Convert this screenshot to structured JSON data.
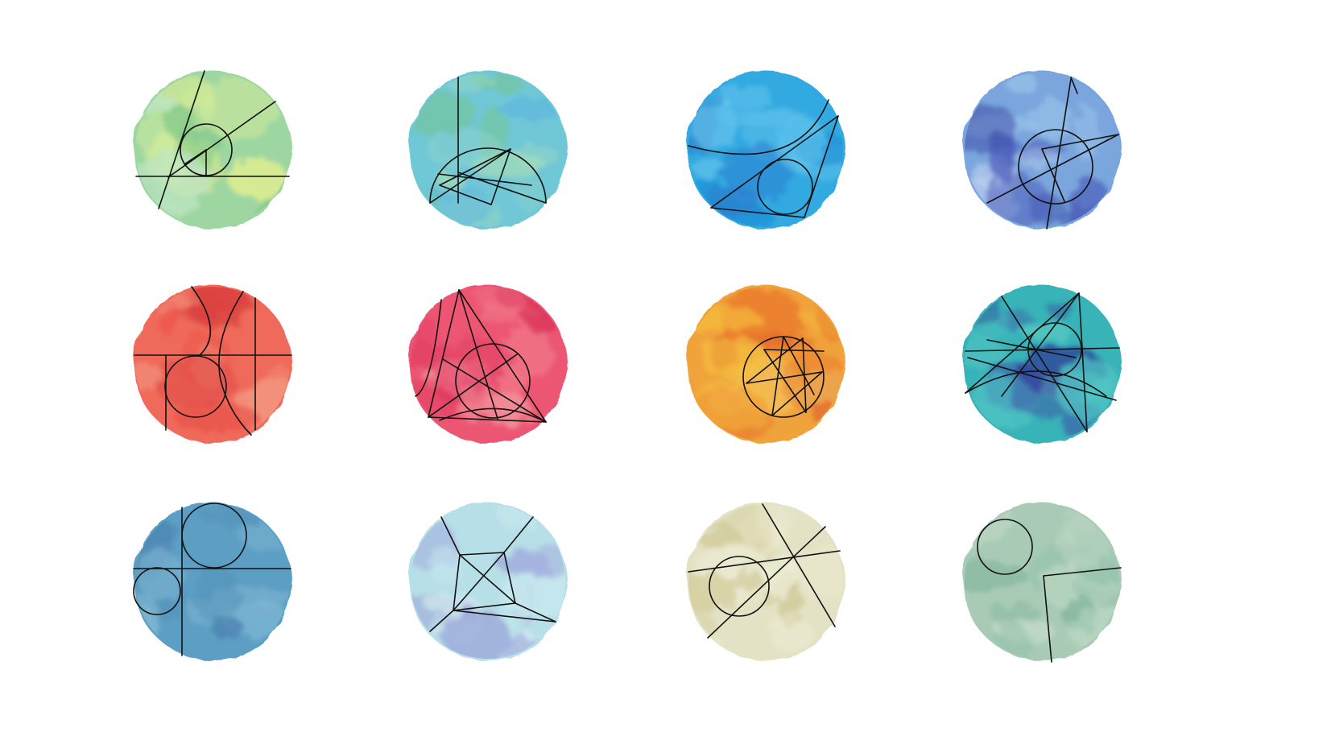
{
  "tiles": [
    {
      "name": "green-watercolor-tile",
      "colors": [
        "#9dd6a0",
        "#7cc785",
        "#d8ef9a",
        "#bfe6c6",
        "#e9f28d"
      ],
      "motif": "circle-tangent-lines"
    },
    {
      "name": "teal-watercolor-tile",
      "colors": [
        "#6fc7d6",
        "#74c48a",
        "#8fd3c9",
        "#5ab6e0",
        "#a7ddb8"
      ],
      "motif": "semicircle-triangles"
    },
    {
      "name": "sky-blue-watercolor-tile",
      "colors": [
        "#33a9e0",
        "#1e8fd6",
        "#5ec2ec",
        "#2b7fcf",
        "#72c9ef"
      ],
      "motif": "arc-and-incircle"
    },
    {
      "name": "indigo-watercolor-tile",
      "colors": [
        "#7aa6dd",
        "#4a5ab8",
        "#9ec7ec",
        "#3e4ea8",
        "#c3d3f2"
      ],
      "motif": "star-in-circle"
    },
    {
      "name": "red-watercolor-tile",
      "colors": [
        "#ef6a5a",
        "#e94b45",
        "#f2907a",
        "#d8403e",
        "#f4a088"
      ],
      "motif": "arcs-and-grid"
    },
    {
      "name": "pink-watercolor-tile",
      "colors": [
        "#ec5672",
        "#e13c63",
        "#f27e8c",
        "#d83158",
        "#f39a9f"
      ],
      "motif": "triangle-incircle"
    },
    {
      "name": "orange-watercolor-tile",
      "colors": [
        "#f0a23a",
        "#e86b2a",
        "#f5c23e",
        "#dd5a24",
        "#f3d26c"
      ],
      "motif": "pentagram-in-circle"
    },
    {
      "name": "blue-teal-watercolor-tile",
      "colors": [
        "#38b3b8",
        "#3e4fa6",
        "#4fc4c4",
        "#2e3d96",
        "#62cfc9"
      ],
      "motif": "crossing-lines-circle"
    },
    {
      "name": "steel-blue-watercolor-tile",
      "colors": [
        "#5d9fc4",
        "#4f8db5",
        "#7db4d2",
        "#4a7fae",
        "#89bfd8"
      ],
      "motif": "two-circles-cross"
    },
    {
      "name": "lavender-watercolor-tile",
      "colors": [
        "#b7dfe7",
        "#a5b2e0",
        "#c9e9ee",
        "#9aa4d8",
        "#d6eef0"
      ],
      "motif": "quadrilateral-rays"
    },
    {
      "name": "sand-watercolor-tile",
      "colors": [
        "#e3e2c4",
        "#d2cd98",
        "#ecebd3",
        "#c9c28a",
        "#f0efdc"
      ],
      "motif": "circle-secants"
    },
    {
      "name": "sage-watercolor-tile",
      "colors": [
        "#a9cbb5",
        "#8fbfa9",
        "#bdd8c4",
        "#80b39c",
        "#c9e0cf"
      ],
      "motif": "circle-corner"
    }
  ]
}
